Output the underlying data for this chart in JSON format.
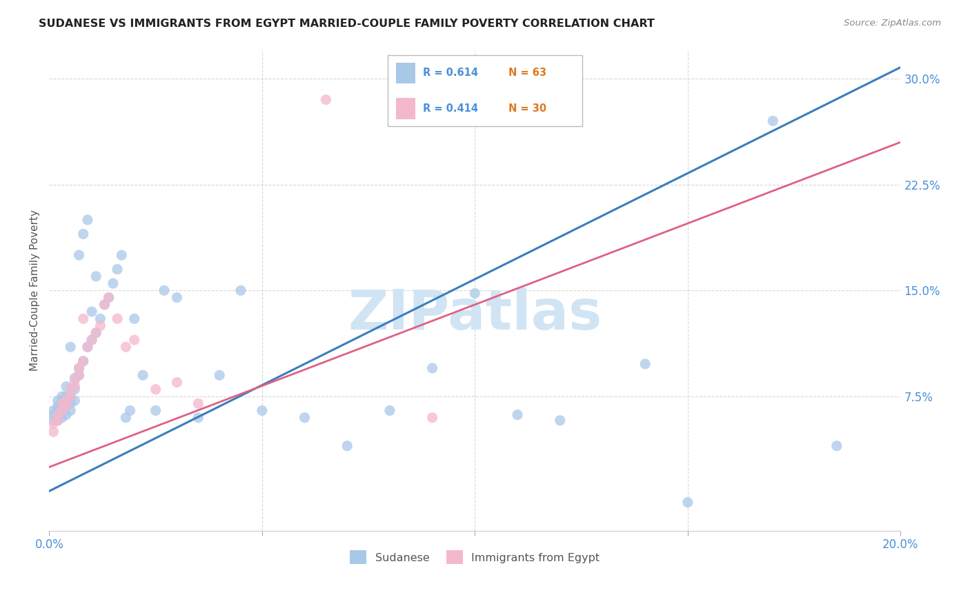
{
  "title": "SUDANESE VS IMMIGRANTS FROM EGYPT MARRIED-COUPLE FAMILY POVERTY CORRELATION CHART",
  "source": "Source: ZipAtlas.com",
  "ylabel": "Married-Couple Family Poverty",
  "y_tick_labels": [
    "7.5%",
    "15.0%",
    "22.5%",
    "30.0%"
  ],
  "y_tick_values": [
    0.075,
    0.15,
    0.225,
    0.3
  ],
  "x_lim": [
    0.0,
    0.2
  ],
  "y_lim": [
    -0.02,
    0.32
  ],
  "blue_color": "#a8c8e8",
  "pink_color": "#f4b8cc",
  "blue_line_color": "#3a7dbf",
  "pink_line_color": "#e06080",
  "axis_label_color": "#4a90d9",
  "axis_tick_color": "#4a90d9",
  "watermark": "ZIPatlas",
  "watermark_color": "#d0e4f4",
  "legend_R1": "R = 0.614",
  "legend_N1": "N = 63",
  "legend_R2": "R = 0.414",
  "legend_N2": "N = 30",
  "legend_label1": "Sudanese",
  "legend_label2": "Immigrants from Egypt",
  "blue_x": [
    0.001,
    0.001,
    0.001,
    0.002,
    0.002,
    0.002,
    0.002,
    0.002,
    0.003,
    0.003,
    0.003,
    0.003,
    0.003,
    0.004,
    0.004,
    0.004,
    0.004,
    0.005,
    0.005,
    0.005,
    0.005,
    0.006,
    0.006,
    0.006,
    0.007,
    0.007,
    0.007,
    0.008,
    0.008,
    0.009,
    0.009,
    0.01,
    0.01,
    0.011,
    0.011,
    0.012,
    0.013,
    0.014,
    0.015,
    0.016,
    0.017,
    0.018,
    0.019,
    0.02,
    0.022,
    0.025,
    0.027,
    0.03,
    0.035,
    0.04,
    0.045,
    0.05,
    0.06,
    0.07,
    0.08,
    0.09,
    0.1,
    0.11,
    0.12,
    0.14,
    0.15,
    0.17,
    0.185
  ],
  "blue_y": [
    0.058,
    0.062,
    0.065,
    0.058,
    0.062,
    0.065,
    0.068,
    0.072,
    0.06,
    0.065,
    0.068,
    0.072,
    0.075,
    0.062,
    0.068,
    0.075,
    0.082,
    0.065,
    0.07,
    0.075,
    0.11,
    0.072,
    0.08,
    0.088,
    0.09,
    0.095,
    0.175,
    0.1,
    0.19,
    0.11,
    0.2,
    0.115,
    0.135,
    0.12,
    0.16,
    0.13,
    0.14,
    0.145,
    0.155,
    0.165,
    0.175,
    0.06,
    0.065,
    0.13,
    0.09,
    0.065,
    0.15,
    0.145,
    0.06,
    0.09,
    0.15,
    0.065,
    0.06,
    0.04,
    0.065,
    0.095,
    0.148,
    0.062,
    0.058,
    0.098,
    0.0,
    0.27,
    0.04
  ],
  "pink_x": [
    0.001,
    0.001,
    0.002,
    0.002,
    0.003,
    0.003,
    0.004,
    0.004,
    0.005,
    0.005,
    0.006,
    0.006,
    0.007,
    0.007,
    0.008,
    0.008,
    0.009,
    0.01,
    0.011,
    0.012,
    0.013,
    0.014,
    0.016,
    0.018,
    0.02,
    0.025,
    0.03,
    0.035,
    0.065,
    0.09
  ],
  "pink_y": [
    0.05,
    0.056,
    0.058,
    0.062,
    0.065,
    0.07,
    0.068,
    0.072,
    0.075,
    0.08,
    0.082,
    0.086,
    0.09,
    0.095,
    0.1,
    0.13,
    0.11,
    0.115,
    0.12,
    0.125,
    0.14,
    0.145,
    0.13,
    0.11,
    0.115,
    0.08,
    0.085,
    0.07,
    0.285,
    0.06
  ],
  "blue_slope": 1.5,
  "blue_intercept": 0.008,
  "pink_slope": 1.15,
  "pink_intercept": 0.025,
  "grid_color": "#d8d8d8",
  "background_color": "#ffffff"
}
